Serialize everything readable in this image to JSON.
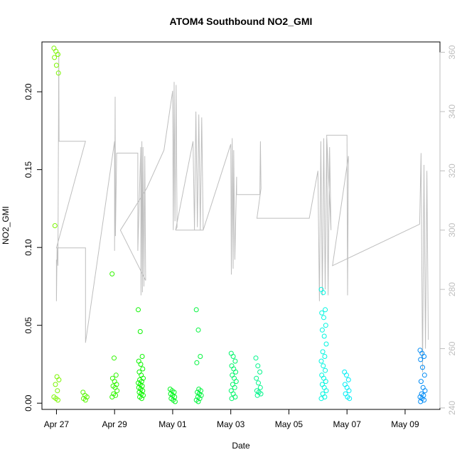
{
  "chart_data": {
    "type": "scatter",
    "title": "ATOM4 Southbound NO2_GMI",
    "xlabel": "Date",
    "ylabel": "NO2_GMI",
    "x_axis": {
      "range_days": [
        -0.5,
        13.2
      ],
      "ticks": [
        {
          "day": 0,
          "label": "Apr 27"
        },
        {
          "day": 2,
          "label": "Apr 29"
        },
        {
          "day": 4,
          "label": "May 01"
        },
        {
          "day": 6,
          "label": "May 03"
        },
        {
          "day": 8,
          "label": "May 05"
        },
        {
          "day": 10,
          "label": "May 07"
        },
        {
          "day": 12,
          "label": "May 09"
        }
      ]
    },
    "y_axis": {
      "ylim": [
        -0.004,
        0.232
      ],
      "ticks": [
        0.0,
        0.05,
        0.1,
        0.15,
        0.2
      ],
      "tick_labels": [
        "0.00",
        "0.05",
        "0.10",
        "0.15",
        "0.20"
      ]
    },
    "y2_axis": {
      "ylim": [
        239.5,
        363.5
      ],
      "ticks": [
        240,
        260,
        280,
        300,
        320,
        340,
        360
      ],
      "tick_labels": [
        "240",
        "260",
        "280",
        "300",
        "320",
        "340",
        "360"
      ],
      "color": "#bebebe",
      "series_name": "secondary trace"
    },
    "clusters": [
      {
        "day": 0.0,
        "values": [
          0.228,
          0.226,
          0.224,
          0.222,
          0.217,
          0.212,
          0.114,
          0.017,
          0.015,
          0.012,
          0.008,
          0.004,
          0.003,
          0.002
        ]
      },
      {
        "day": 1.0,
        "values": [
          0.007,
          0.005,
          0.004,
          0.003,
          0.002
        ]
      },
      {
        "day": 2.0,
        "values": [
          0.083,
          0.029,
          0.018,
          0.016,
          0.014,
          0.012,
          0.011,
          0.01,
          0.008,
          0.006,
          0.005,
          0.004
        ]
      },
      {
        "day": 2.9,
        "values": [
          0.06,
          0.046,
          0.03,
          0.027,
          0.025,
          0.022,
          0.02,
          0.018,
          0.016,
          0.015,
          0.014,
          0.013,
          0.012,
          0.011,
          0.01,
          0.009,
          0.008,
          0.007,
          0.006,
          0.005,
          0.004,
          0.003
        ]
      },
      {
        "day": 4.0,
        "values": [
          0.009,
          0.008,
          0.007,
          0.006,
          0.005,
          0.004,
          0.003,
          0.002,
          0.001
        ]
      },
      {
        "day": 4.9,
        "values": [
          0.06,
          0.047,
          0.03,
          0.026,
          0.009,
          0.008,
          0.007,
          0.006,
          0.005,
          0.004,
          0.003,
          0.002,
          0.001
        ]
      },
      {
        "day": 6.1,
        "values": [
          0.032,
          0.03,
          0.027,
          0.024,
          0.022,
          0.02,
          0.018,
          0.016,
          0.014,
          0.012,
          0.01,
          0.008,
          0.006,
          0.004,
          0.003
        ]
      },
      {
        "day": 6.95,
        "values": [
          0.029,
          0.024,
          0.02,
          0.016,
          0.013,
          0.01,
          0.008,
          0.007,
          0.006,
          0.005
        ]
      },
      {
        "day": 9.2,
        "values": [
          0.073,
          0.071,
          0.06,
          0.058,
          0.055,
          0.05,
          0.047,
          0.043,
          0.038,
          0.033,
          0.03,
          0.027,
          0.024,
          0.021,
          0.018,
          0.016,
          0.014,
          0.012,
          0.01,
          0.008,
          0.006,
          0.004,
          0.003
        ]
      },
      {
        "day": 10.0,
        "values": [
          0.02,
          0.018,
          0.015,
          0.012,
          0.01,
          0.008,
          0.006,
          0.004,
          0.003
        ]
      },
      {
        "day": 12.6,
        "values": [
          0.034,
          0.032,
          0.03,
          0.028,
          0.023,
          0.018,
          0.014,
          0.01,
          0.008,
          0.006,
          0.005,
          0.004,
          0.003,
          0.002,
          0.001
        ]
      }
    ],
    "secondary_trace": [
      [
        0.0,
        290
      ],
      [
        0.0,
        276
      ],
      [
        0.02,
        294
      ],
      [
        0.05,
        288
      ],
      [
        0.08,
        360
      ],
      [
        0.09,
        330
      ],
      [
        1.0,
        330
      ],
      [
        0.0,
        294
      ],
      [
        1.0,
        294
      ],
      [
        1.0,
        262
      ],
      [
        2.0,
        330
      ],
      [
        2.0,
        293
      ],
      [
        2.02,
        345
      ],
      [
        2.03,
        298
      ],
      [
        2.07,
        326
      ],
      [
        2.8,
        326
      ],
      [
        2.8,
        293
      ],
      [
        2.9,
        328
      ],
      [
        2.91,
        278
      ],
      [
        2.94,
        330
      ],
      [
        2.96,
        279
      ],
      [
        2.98,
        328
      ],
      [
        3.01,
        281
      ],
      [
        3.04,
        325
      ],
      [
        3.07,
        283
      ],
      [
        2.2,
        300
      ],
      [
        3.1,
        314
      ],
      [
        3.7,
        327
      ],
      [
        4.0,
        347
      ],
      [
        4.02,
        300
      ],
      [
        4.05,
        350
      ],
      [
        4.08,
        303
      ],
      [
        4.12,
        349
      ],
      [
        4.15,
        301
      ],
      [
        4.1,
        300
      ],
      [
        4.7,
        330
      ],
      [
        4.75,
        300
      ],
      [
        4.8,
        340
      ],
      [
        4.85,
        301
      ],
      [
        4.9,
        339
      ],
      [
        4.95,
        300
      ],
      [
        5.0,
        338
      ],
      [
        5.05,
        300
      ],
      [
        4.1,
        300
      ],
      [
        5.05,
        300
      ],
      [
        6.0,
        329
      ],
      [
        6.02,
        285
      ],
      [
        6.05,
        331
      ],
      [
        6.08,
        287
      ],
      [
        6.1,
        327
      ],
      [
        6.14,
        290
      ],
      [
        6.2,
        318
      ],
      [
        6.2,
        312
      ],
      [
        7.0,
        312
      ],
      [
        7.02,
        330
      ],
      [
        7.04,
        314
      ],
      [
        6.9,
        304
      ],
      [
        8.7,
        304
      ],
      [
        9.0,
        320
      ],
      [
        9.05,
        276
      ],
      [
        9.1,
        330
      ],
      [
        9.15,
        278
      ],
      [
        9.2,
        331
      ],
      [
        9.25,
        280
      ],
      [
        9.3,
        331
      ],
      [
        9.35,
        278
      ],
      [
        9.4,
        328
      ],
      [
        9.45,
        300
      ],
      [
        9.3,
        332
      ],
      [
        10.0,
        332
      ],
      [
        10.02,
        278
      ],
      [
        10.05,
        325
      ],
      [
        9.5,
        288
      ],
      [
        12.5,
        302
      ],
      [
        12.55,
        326
      ],
      [
        12.6,
        252
      ],
      [
        12.65,
        322
      ],
      [
        12.7,
        260
      ],
      [
        12.75,
        320
      ],
      [
        12.8,
        263
      ]
    ]
  }
}
